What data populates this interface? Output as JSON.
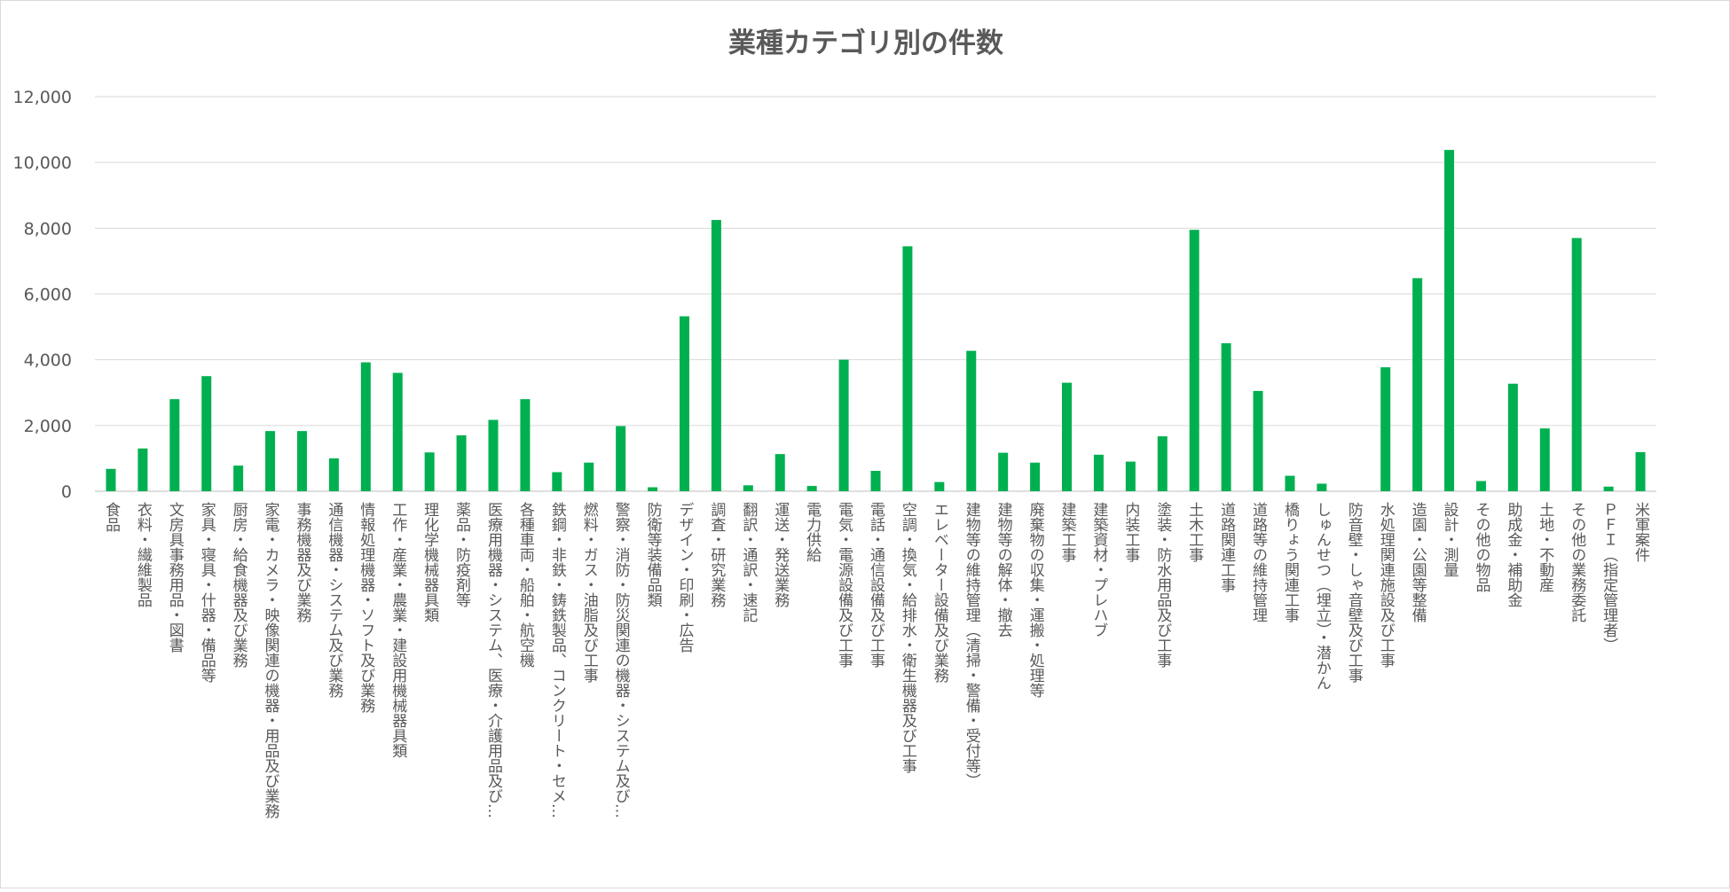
{
  "chart_data": {
    "type": "bar",
    "title": "業種カテゴリ別の件数",
    "xlabel": "",
    "ylabel": "",
    "ylim": [
      0,
      12000
    ],
    "yticks": [
      0,
      2000,
      4000,
      6000,
      8000,
      10000,
      12000
    ],
    "ytick_labels": [
      "0",
      "2,000",
      "4,000",
      "6,000",
      "8,000",
      "10,000",
      "12,000"
    ],
    "grid": true,
    "legend": "none",
    "bar_color": "#00b050",
    "categories": [
      "食品",
      "衣料・繊維製品",
      "文房具事務用品・図書",
      "家具・寝具・什器・備品等",
      "厨房・給食機器及び業務",
      "家電・カメラ・映像関連の機器・用品及び業務",
      "事務機器及び業務",
      "通信機器・システム及び業務",
      "情報処理機器・ソフト及び業務",
      "工作・産業・農業・建設用機械器具類",
      "理化学機械器具類",
      "薬品・防疫剤等",
      "医療用機器・システム、医療・介護用品及び…",
      "各種車両・船舶・航空機",
      "鉄鋼・非鉄・鋳鉄製品、コンクリート・セメ…",
      "燃料・ガス・油脂及び工事",
      "警察・消防・防災関連の機器・システム及び…",
      "防衛等装備品類",
      "デザイン・印刷・広告",
      "調査・研究業務",
      "翻訳・通訳・速記",
      "運送・発送業務",
      "電力供給",
      "電気・電源設備及び工事",
      "電話・通信設備及び工事",
      "空調・換気・給排水・衛生機器及び工事",
      "エレベーター設備及び業務",
      "建物等の維持管理（清掃・警備・受付等）",
      "建物等の解体・撤去",
      "廃棄物の収集・運搬・処理等",
      "建築工事",
      "建築資材・プレハブ",
      "内装工事",
      "塗装・防水用品及び工事",
      "土木工事",
      "道路関連工事",
      "道路等の維持管理",
      "橋りょう関連工事",
      "しゅんせつ（埋立）・潜かん",
      "防音壁・しゃ音壁及び工事",
      "水処理関連施設及び工事",
      "造園・公園等整備",
      "設計・測量",
      "その他の物品",
      "助成金・補助金",
      "土地・不動産",
      "その他の業務委託",
      "ＰＦＩ（指定管理者）",
      "米軍案件"
    ],
    "values": [
      680,
      1300,
      2800,
      3500,
      780,
      1830,
      1830,
      1000,
      3920,
      3600,
      1180,
      1700,
      2170,
      2800,
      580,
      870,
      1980,
      120,
      5320,
      8250,
      180,
      1130,
      160,
      4000,
      620,
      7450,
      280,
      4270,
      1170,
      870,
      3300,
      1110,
      900,
      1670,
      7950,
      4500,
      3050,
      470,
      230,
      0,
      3770,
      6480,
      10380,
      310,
      3270,
      1910,
      7700,
      140,
      1190
    ]
  }
}
